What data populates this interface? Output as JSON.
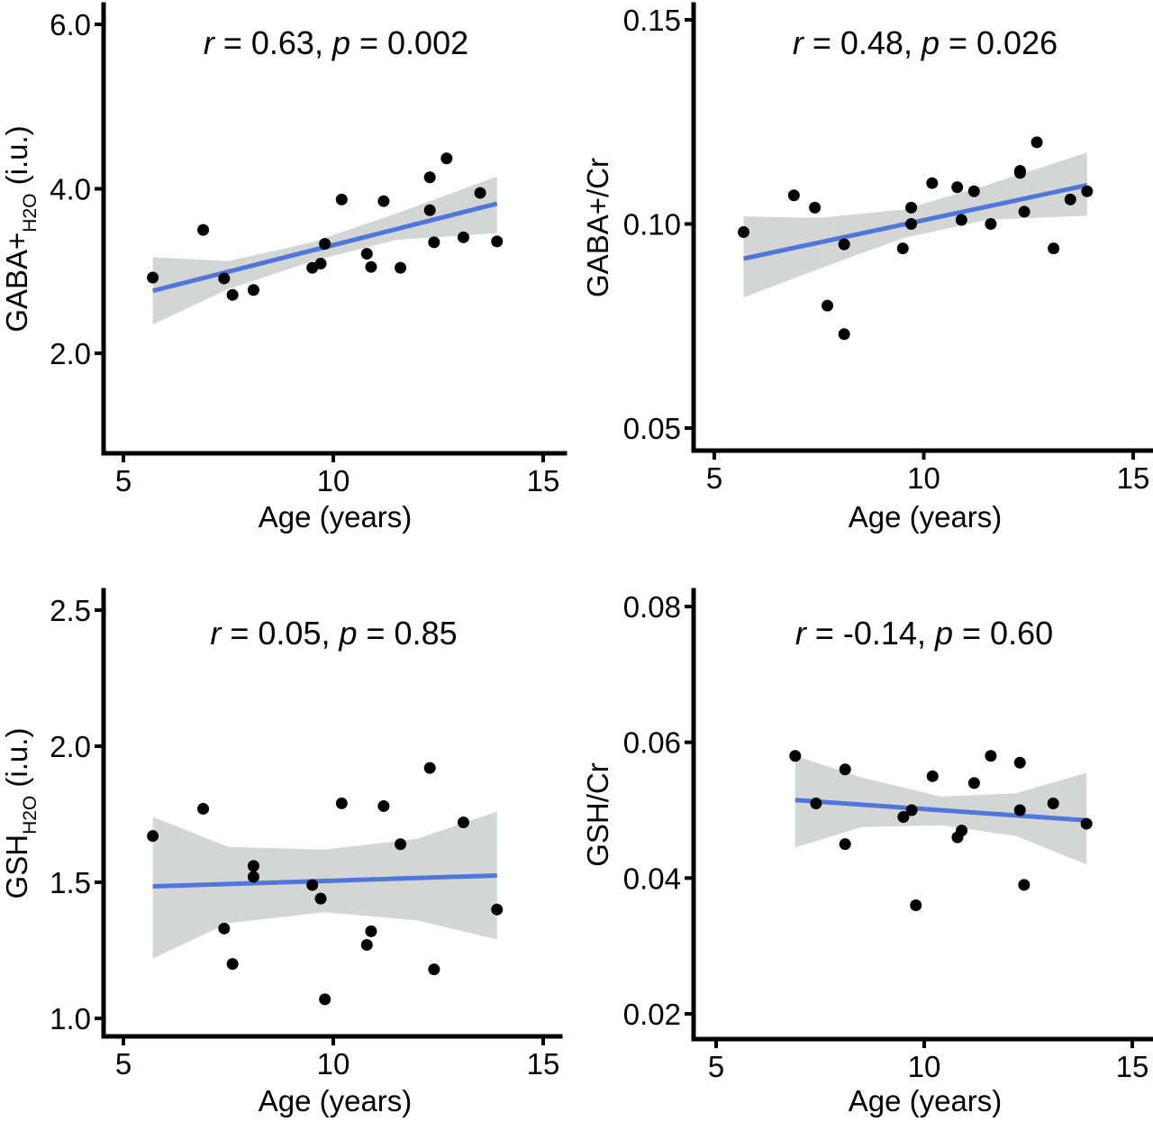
{
  "chart_data": [
    {
      "type": "scatter",
      "xlabel": "Age (years)",
      "ylabel": {
        "main": "GABA+",
        "sub": "H2O",
        "suffix": " (i.u.)"
      },
      "xlim": [
        4.1,
        15.3
      ],
      "ylim": [
        0.8,
        6.25
      ],
      "x_ticks": [
        5,
        10,
        15
      ],
      "y_ticks": [
        {
          "value": 2.0,
          "label": "2.0"
        },
        {
          "value": 4.0,
          "label": "4.0"
        },
        {
          "value": 6.0,
          "label": "6.0"
        }
      ],
      "annotation": {
        "r_label": "r",
        "r_text": " = 0.63, ",
        "p_label": "p",
        "p_text": " = 0.002"
      },
      "fit": {
        "x": [
          5.7,
          13.9
        ],
        "y": [
          2.76,
          3.82
        ]
      },
      "ci": {
        "x": [
          5.7,
          7.5,
          9.5,
          11.5,
          13.9
        ],
        "lower": [
          2.35,
          2.78,
          3.12,
          3.38,
          3.46
        ],
        "upper": [
          3.17,
          3.12,
          3.35,
          3.7,
          4.15
        ]
      },
      "points": {
        "x": [
          5.7,
          6.9,
          7.4,
          7.6,
          8.1,
          9.5,
          9.7,
          9.8,
          10.2,
          10.8,
          10.9,
          11.2,
          11.6,
          12.3,
          12.3,
          12.4,
          12.7,
          13.1,
          13.5,
          13.9
        ],
        "y": [
          2.92,
          3.5,
          2.91,
          2.71,
          2.77,
          3.04,
          3.09,
          3.33,
          3.87,
          3.21,
          3.05,
          3.85,
          3.04,
          4.14,
          3.74,
          3.35,
          4.37,
          3.41,
          3.95,
          3.36
        ]
      }
    },
    {
      "type": "scatter",
      "xlabel": "Age (years)",
      "ylabel": {
        "main": "GABA+/Cr",
        "sub": "",
        "suffix": ""
      },
      "xlim": [
        4.1,
        15.3
      ],
      "ylim": [
        0.044,
        0.156
      ],
      "x_ticks": [
        5,
        10,
        15
      ],
      "y_ticks": [
        {
          "value": 0.05,
          "label": "0.05"
        },
        {
          "value": 0.1,
          "label": "0.10"
        },
        {
          "value": 0.15,
          "label": "0.15"
        }
      ],
      "annotation": {
        "r_label": "r",
        "r_text": " = 0.48, ",
        "p_label": "p",
        "p_text": " = 0.026"
      },
      "fit": {
        "x": [
          5.7,
          13.9
        ],
        "y": [
          0.0915,
          0.1095
        ]
      },
      "ci": {
        "x": [
          5.7,
          7.5,
          9.5,
          11.5,
          13.9
        ],
        "lower": [
          0.082,
          0.089,
          0.0965,
          0.101,
          0.102
        ],
        "upper": [
          0.1018,
          0.1015,
          0.1035,
          0.1095,
          0.1175
        ]
      },
      "points": {
        "x": [
          5.7,
          6.9,
          7.4,
          7.7,
          8.1,
          8.1,
          9.5,
          9.7,
          9.7,
          10.2,
          10.8,
          10.9,
          11.2,
          11.6,
          12.3,
          12.3,
          12.4,
          12.7,
          13.1,
          13.5,
          13.9
        ],
        "y": [
          0.098,
          0.107,
          0.104,
          0.08,
          0.073,
          0.095,
          0.094,
          0.1,
          0.104,
          0.11,
          0.109,
          0.101,
          0.108,
          0.1,
          0.113,
          0.1125,
          0.103,
          0.12,
          0.094,
          0.106,
          0.108
        ]
      }
    },
    {
      "type": "scatter",
      "xlabel": "Age (years)",
      "ylabel": {
        "main": "GSH",
        "sub": "H2O",
        "suffix": " (i.u.)"
      },
      "xlim": [
        4.1,
        15.3
      ],
      "ylim": [
        0.92,
        2.62
      ],
      "x_ticks": [
        5,
        10,
        15
      ],
      "y_ticks": [
        {
          "value": 1.0,
          "label": "1.0"
        },
        {
          "value": 1.5,
          "label": "1.5"
        },
        {
          "value": 2.0,
          "label": "2.0"
        },
        {
          "value": 2.5,
          "label": "2.5"
        }
      ],
      "annotation": {
        "r_label": "r",
        "r_text": " = 0.05, ",
        "p_label": "p",
        "p_text": " = 0.85"
      },
      "fit": {
        "x": [
          5.7,
          13.9
        ],
        "y": [
          1.485,
          1.525
        ]
      },
      "ci": {
        "x": [
          5.7,
          7.5,
          9.8,
          12.0,
          13.9
        ],
        "lower": [
          1.22,
          1.35,
          1.39,
          1.36,
          1.29
        ],
        "upper": [
          1.74,
          1.63,
          1.62,
          1.66,
          1.76
        ]
      },
      "points": {
        "x": [
          5.7,
          6.9,
          7.4,
          7.6,
          8.1,
          8.1,
          9.5,
          9.7,
          9.8,
          10.2,
          10.8,
          10.9,
          11.2,
          11.6,
          12.3,
          12.4,
          13.1,
          13.9
        ],
        "y": [
          1.67,
          1.77,
          1.33,
          1.2,
          1.56,
          1.52,
          1.49,
          1.44,
          1.07,
          1.79,
          1.27,
          1.32,
          1.78,
          1.64,
          1.92,
          1.18,
          1.72,
          1.4
        ]
      }
    },
    {
      "type": "scatter",
      "xlabel": "Age (years)",
      "ylabel": {
        "main": "GSH/Cr",
        "sub": "",
        "suffix": ""
      },
      "xlim": [
        4.1,
        15.3
      ],
      "ylim": [
        0.0155,
        0.0835
      ],
      "x_ticks": [
        5,
        10,
        15
      ],
      "y_ticks": [
        {
          "value": 0.02,
          "label": "0.02"
        },
        {
          "value": 0.04,
          "label": "0.04"
        },
        {
          "value": 0.06,
          "label": "0.06"
        },
        {
          "value": 0.08,
          "label": "0.08"
        }
      ],
      "annotation": {
        "r_label": "r",
        "r_text": " = -0.14, ",
        "p_label": "p",
        "p_text": " = 0.60"
      },
      "fit": {
        "x": [
          6.9,
          13.9
        ],
        "y": [
          0.0515,
          0.0485
        ]
      },
      "ci": {
        "x": [
          6.9,
          8.5,
          10.4,
          12.2,
          13.9
        ],
        "lower": [
          0.0445,
          0.0475,
          0.0478,
          0.0462,
          0.042
        ],
        "upper": [
          0.058,
          0.0548,
          0.052,
          0.0525,
          0.0555
        ]
      },
      "points": {
        "x": [
          6.9,
          7.4,
          8.1,
          8.1,
          9.5,
          9.7,
          9.8,
          10.2,
          10.8,
          10.9,
          11.2,
          11.6,
          12.3,
          12.3,
          12.4,
          13.1,
          13.9
        ],
        "y": [
          0.058,
          0.051,
          0.056,
          0.045,
          0.049,
          0.05,
          0.036,
          0.055,
          0.046,
          0.047,
          0.054,
          0.058,
          0.057,
          0.05,
          0.039,
          0.051,
          0.048
        ]
      }
    }
  ]
}
